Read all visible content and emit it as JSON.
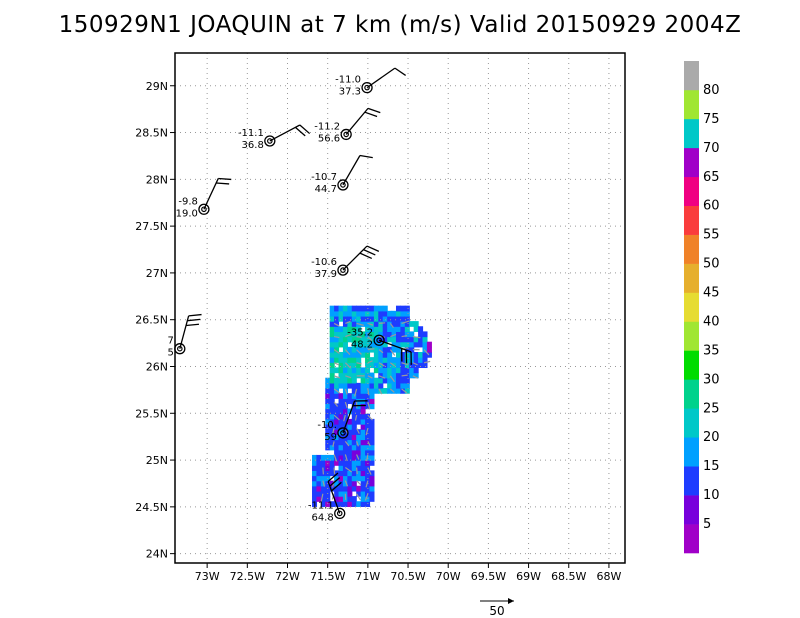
{
  "title": "150929N1 JOAQUIN at 7 km (m/s) Valid 20150929 2004Z",
  "chart_data": {
    "type": "heatmap",
    "title": "150929N1 JOAQUIN at 7 km (m/s) Valid 20150929 2004Z",
    "x_ticks": [
      -73,
      -72.5,
      -72,
      -71.5,
      -71,
      -70.5,
      -70,
      -69.5,
      -69,
      -68.5,
      -68
    ],
    "x_tick_labels": [
      "73W",
      "72.5W",
      "72W",
      "71.5W",
      "71W",
      "70.5W",
      "70W",
      "69.5W",
      "69W",
      "68.5W",
      "68W"
    ],
    "y_ticks": [
      24,
      24.5,
      25,
      25.5,
      26,
      26.5,
      27,
      27.5,
      28,
      28.5,
      29
    ],
    "y_tick_labels": [
      "24N",
      "24.5N",
      "25N",
      "25.5N",
      "26N",
      "26.5N",
      "27N",
      "27.5N",
      "28N",
      "28.5N",
      "29N"
    ],
    "xlim": [
      -73.4,
      -67.8
    ],
    "ylim": [
      23.9,
      29.35
    ],
    "grid": true,
    "colorbar": {
      "labels": [
        "5",
        "10",
        "15",
        "20",
        "25",
        "30",
        "35",
        "40",
        "45",
        "50",
        "55",
        "60",
        "65",
        "70",
        "75",
        "80"
      ],
      "colors": [
        "#a000c8",
        "#7800dc",
        "#1e3cff",
        "#00a0ff",
        "#00c8c8",
        "#00d28c",
        "#00dc00",
        "#a0e632",
        "#e6dc32",
        "#e6af2d",
        "#f08228",
        "#fa3c3c",
        "#f00082",
        "#a000c8",
        "#00c8c8",
        "#a0e632",
        "#aaaaaa"
      ]
    },
    "reference_vector": {
      "label": "50"
    },
    "observations": [
      {
        "lon": -71.01,
        "lat": 28.98,
        "label_top": "-11.0",
        "label_bottom": "37.3",
        "barb_dir": 55,
        "barb_flags": 1
      },
      {
        "lon": -71.27,
        "lat": 28.48,
        "label_top": "-11.2",
        "label_bottom": "56.6",
        "barb_dir": 40,
        "barb_flags": 2
      },
      {
        "lon": -72.22,
        "lat": 28.41,
        "label_top": "-11.1",
        "label_bottom": "36.8",
        "barb_dir": 62,
        "barb_flags": 2
      },
      {
        "lon": -71.31,
        "lat": 27.94,
        "label_top": "-10.7",
        "label_bottom": "44.7",
        "barb_dir": 30,
        "barb_flags": 1
      },
      {
        "lon": -73.04,
        "lat": 27.68,
        "label_top": "-9.8",
        "label_bottom": "19.0",
        "barb_dir": 25,
        "barb_flags": 2
      },
      {
        "lon": -71.31,
        "lat": 27.03,
        "label_top": "-10.6",
        "label_bottom": "37.9",
        "barb_dir": 45,
        "barb_flags": 3
      },
      {
        "lon": -73.34,
        "lat": 26.19,
        "label_top": "7",
        "label_bottom": "5",
        "barb_dir": 15,
        "barb_flags": 3
      },
      {
        "lon": -70.86,
        "lat": 26.28,
        "label_top": "-35.2",
        "label_bottom": "48.2",
        "barb_dir": 110,
        "barb_flags": 3
      },
      {
        "lon": -71.31,
        "lat": 25.29,
        "label_top": "-10.",
        "label_bottom": "59",
        "barb_dir": 20,
        "barb_flags": 2
      },
      {
        "lon": -71.35,
        "lat": 24.43,
        "label_top": "-11.1",
        "label_bottom": "64.8",
        "barb_dir": 340,
        "barb_flags": 3
      }
    ]
  }
}
